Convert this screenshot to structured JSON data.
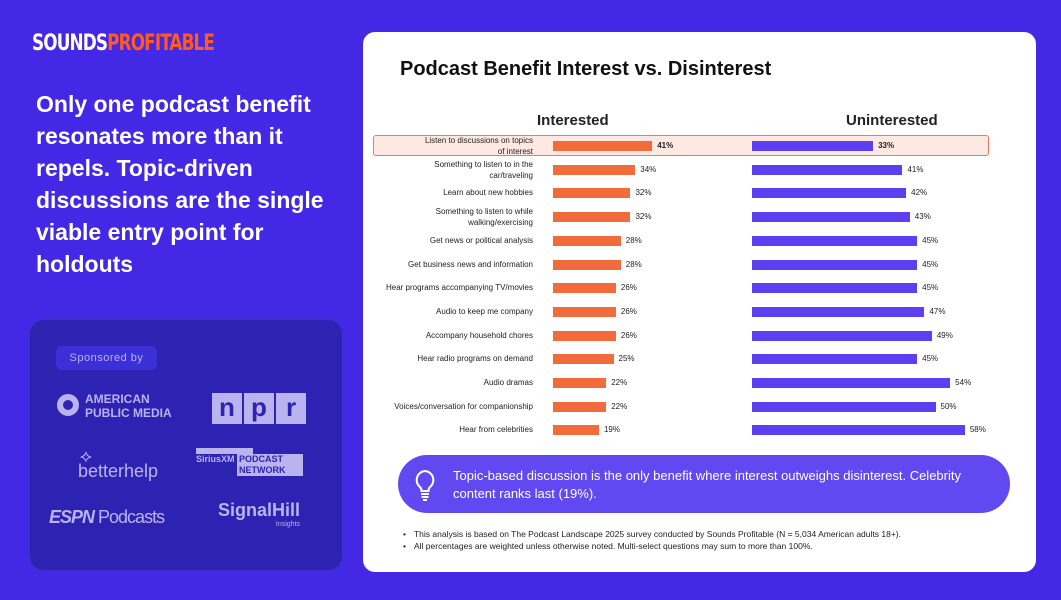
{
  "brand": {
    "part1": "SOUNDS",
    "part2": "PROFITABLE"
  },
  "headline": "Only one podcast benefit resonates more than it repels. Topic-driven discussions are the single viable entry point for holdouts",
  "sponsors": {
    "label": "Sponsored by",
    "logos": [
      "AMERICAN PUBLIC MEDIA",
      "npr",
      "betterhelp",
      "SiriusXM PODCAST NETWORK",
      "ESPN Podcasts",
      "SignalHill Insights"
    ]
  },
  "colors": {
    "interested": "#f26b3a",
    "uninterested": "#5b3ff0",
    "background": "#4329e6"
  },
  "chart_data": {
    "type": "bar",
    "title": "Podcast Benefit Interest vs. Disinterest",
    "highlighted_category": "Listen to discussions on topics of interest",
    "categories": [
      "Listen to discussions on topics of interest",
      "Something to listen to in the car/traveling",
      "Learn about new hobbies",
      "Something to listen to while walking/exercising",
      "Get news or political analysis",
      "Get business news and information",
      "Hear programs accompanying TV/movies",
      "Audio to keep me company",
      "Accompany household chores",
      "Hear radio programs on demand",
      "Audio dramas",
      "Voices/conversation for companionship",
      "Hear from celebrities"
    ],
    "series": [
      {
        "name": "Interested",
        "values": [
          41,
          34,
          32,
          32,
          28,
          28,
          26,
          26,
          26,
          25,
          22,
          22,
          19
        ]
      },
      {
        "name": "Uninterested",
        "values": [
          33,
          41,
          42,
          43,
          45,
          45,
          45,
          47,
          49,
          45,
          54,
          50,
          58
        ]
      }
    ],
    "value_suffix": "%"
  },
  "callout": "Topic-based discussion is the only benefit where interest outweighs disinterest. Celebrity content ranks last (19%).",
  "notes": [
    "This analysis is based on The Podcast Landscape 2025 survey conducted by Sounds Profitable (N = 5,034 American adults 18+).",
    "All percentages are weighted unless otherwise noted. Multi-select questions may sum to more than 100%."
  ]
}
